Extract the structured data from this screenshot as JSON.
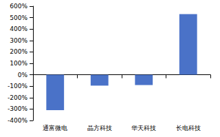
{
  "chart_data": {
    "type": "bar",
    "categories": [
      "通富微电",
      "晶方科技",
      "华天科技",
      "长电科技"
    ],
    "values": [
      -310,
      -95,
      -90,
      530
    ],
    "color": "#4a72c8",
    "ylim": [
      -400,
      600
    ],
    "yticks": [
      {
        "value": -400,
        "label": "-400%"
      },
      {
        "value": -300,
        "label": "-300%"
      },
      {
        "value": -200,
        "label": "-200%"
      },
      {
        "value": -100,
        "label": "-100%"
      },
      {
        "value": 0,
        "label": "0%"
      },
      {
        "value": 100,
        "label": "100%"
      },
      {
        "value": 200,
        "label": "200%"
      },
      {
        "value": 300,
        "label": "300%"
      },
      {
        "value": 400,
        "label": "400%"
      },
      {
        "value": 500,
        "label": "500%"
      },
      {
        "value": 600,
        "label": "600%"
      }
    ],
    "grid": false
  }
}
